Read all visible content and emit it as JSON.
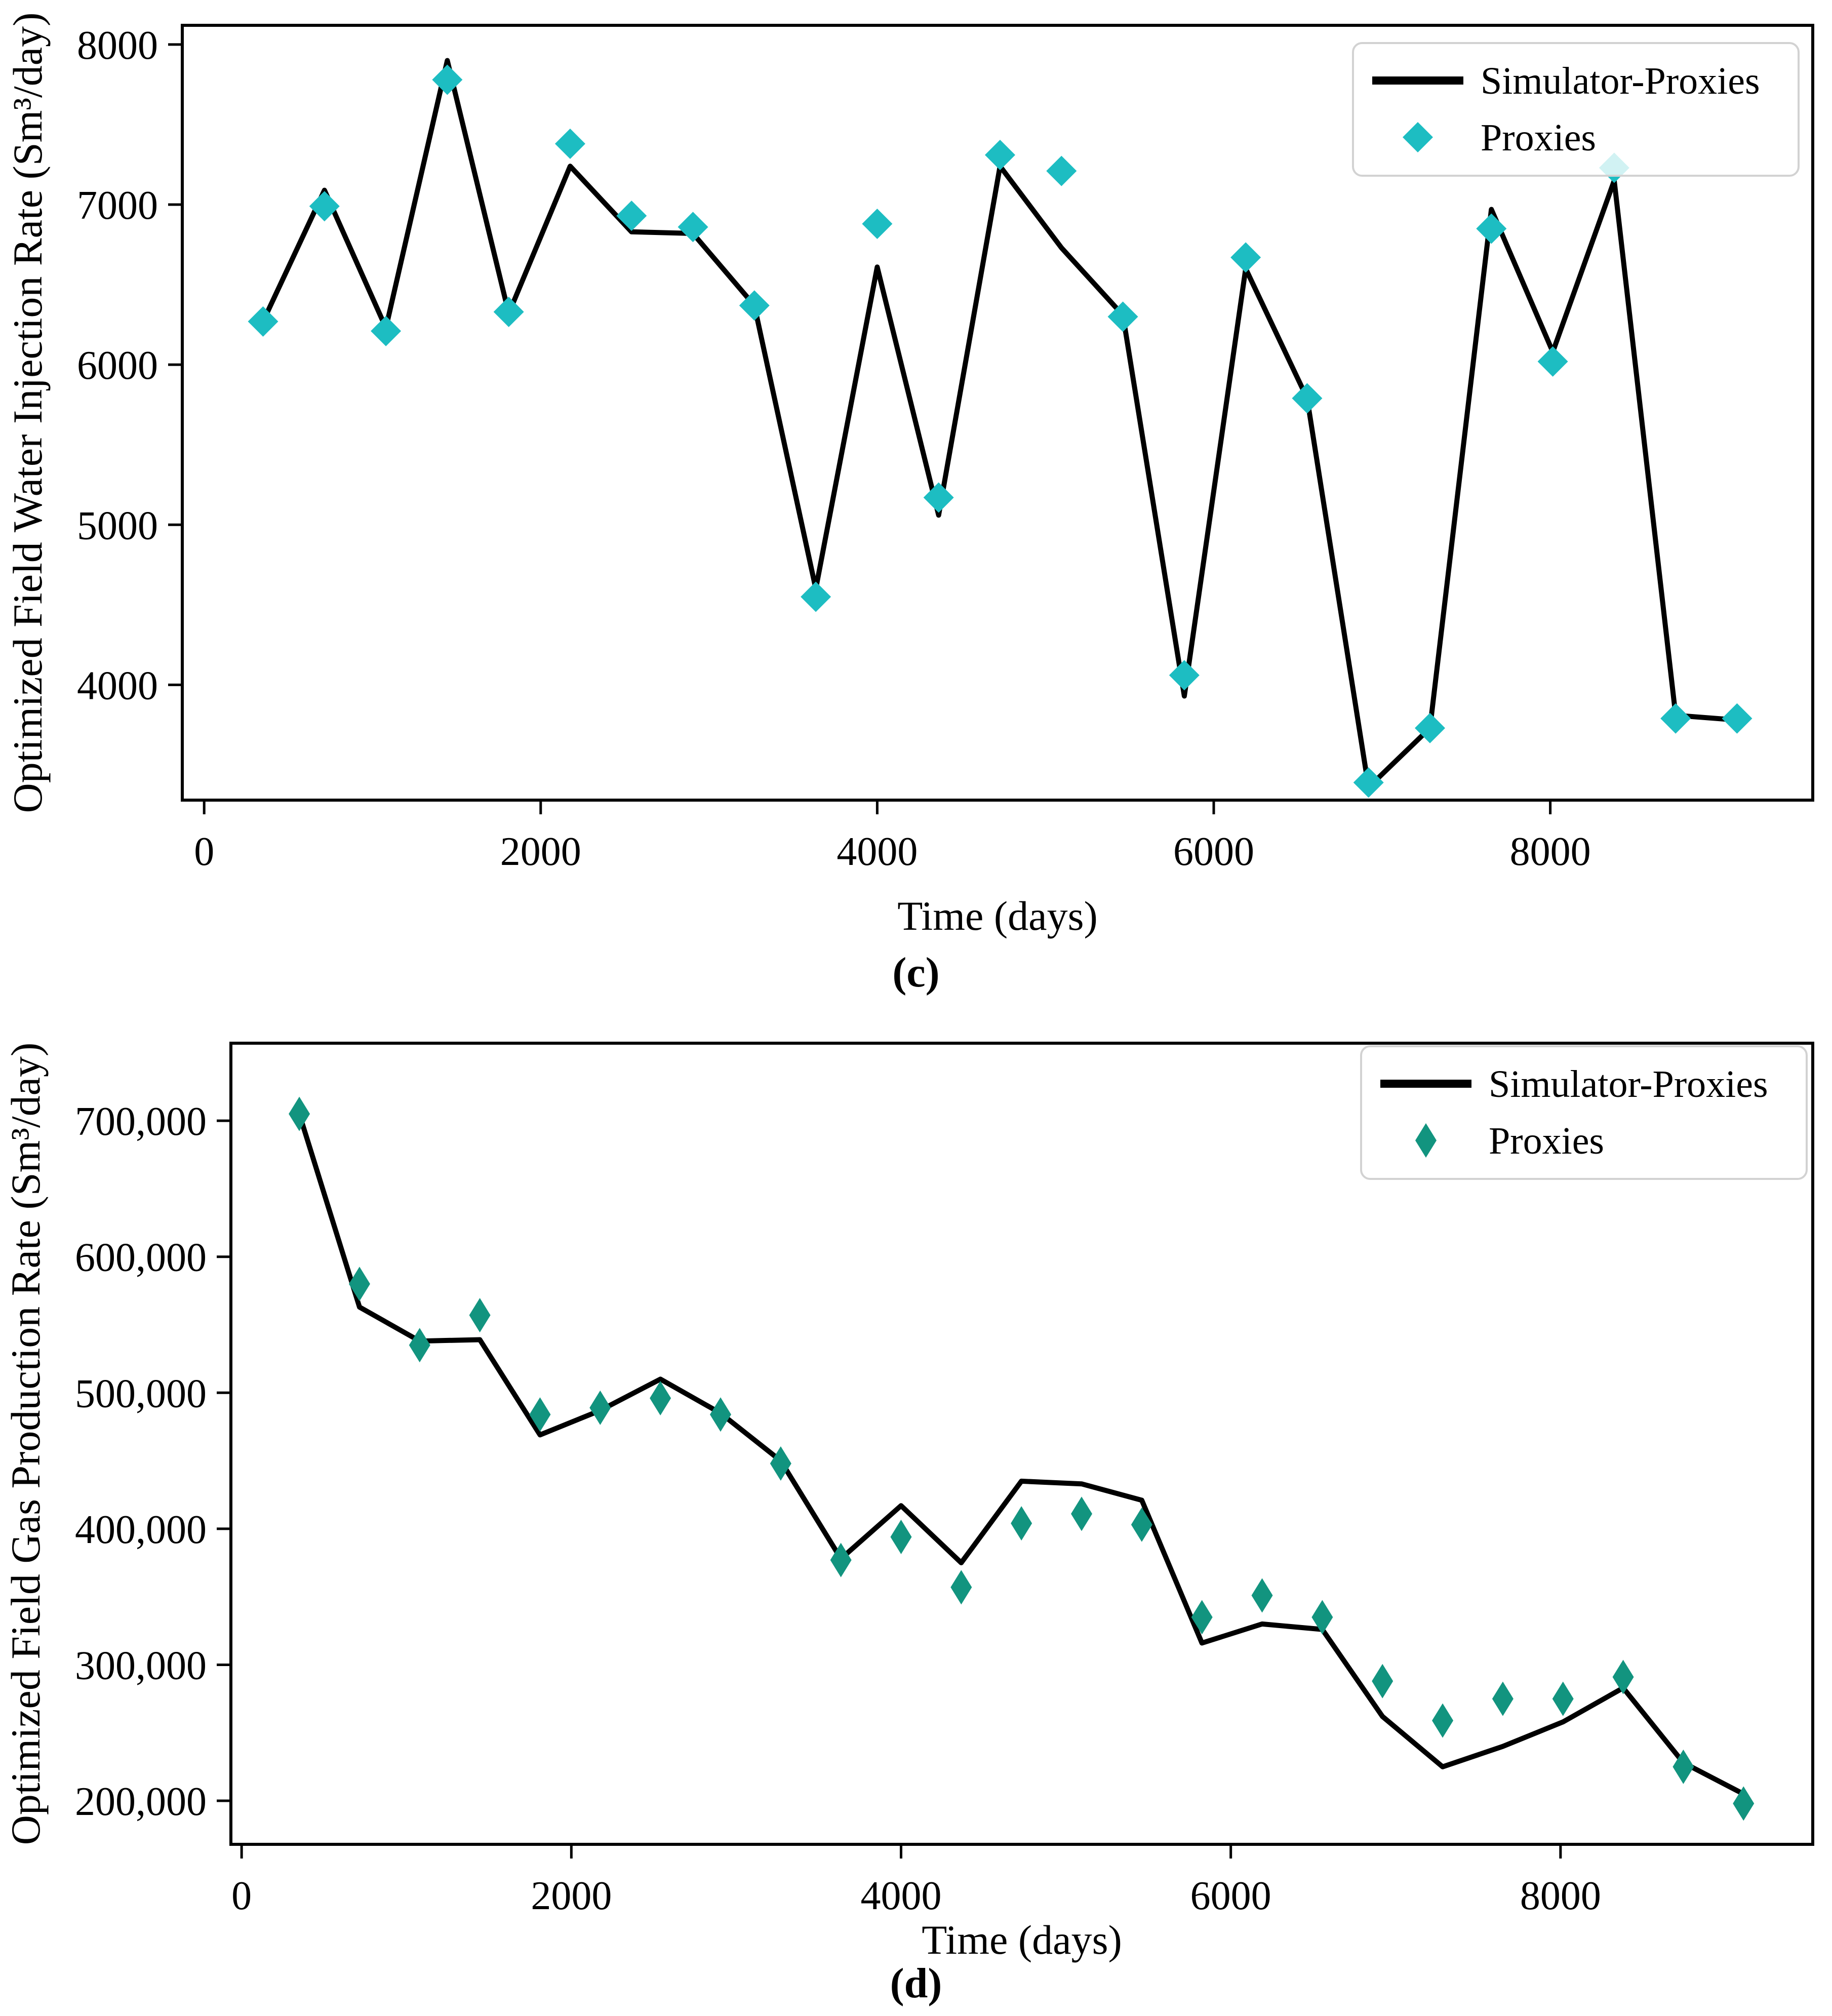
{
  "figure": {
    "background": "#ffffff",
    "captions": {
      "top": "(c)",
      "bottom": "(d)"
    }
  },
  "chart_data": [
    {
      "type": "line",
      "panel_caption": "(c)",
      "xlabel": "Time (days)",
      "ylabel": "Optimized Field Water Injection Rate (Sm³/day)",
      "legend": {
        "position": "upper right",
        "entries": [
          {
            "label": "Simulator-Proxies",
            "swatch": "line",
            "color": "#000000"
          },
          {
            "label": "Proxies",
            "swatch": "diamond",
            "color": "#1dbdc2"
          }
        ]
      },
      "colors": {
        "line": "#000000",
        "marker": "#1dbdc2",
        "legend_edge": "#d2d2d2"
      },
      "marker_shape": "diamond",
      "xlim": [
        -130,
        9560
      ],
      "ylim": [
        3280,
        8120
      ],
      "x_ticks": [
        0,
        2000,
        4000,
        6000,
        8000
      ],
      "x_tick_labels": [
        "0",
        "2000",
        "4000",
        "6000",
        "8000"
      ],
      "y_ticks": [
        4000,
        5000,
        6000,
        7000,
        8000
      ],
      "y_tick_labels": [
        "4000",
        "5000",
        "6000",
        "7000",
        "8000"
      ],
      "grid": false,
      "x": [
        350,
        715,
        1080,
        1445,
        1810,
        2175,
        2540,
        2905,
        3270,
        3635,
        4000,
        4365,
        4730,
        5095,
        5460,
        5825,
        6190,
        6555,
        6920,
        7285,
        7650,
        8015,
        8380,
        8745,
        9110
      ],
      "series": [
        {
          "name": "Simulator-Proxies",
          "style": "line",
          "values": [
            6270,
            7090,
            6230,
            7900,
            6320,
            7240,
            6830,
            6820,
            6370,
            4600,
            6610,
            5060,
            7240,
            6730,
            6310,
            3930,
            6600,
            5790,
            3360,
            3730,
            6970,
            6080,
            7150,
            3810,
            3780
          ]
        },
        {
          "name": "Proxies",
          "style": "scatter",
          "values": [
            6270,
            6990,
            6210,
            7780,
            6330,
            7380,
            6930,
            6860,
            6370,
            4550,
            6880,
            5170,
            7310,
            7210,
            6300,
            4060,
            6670,
            5790,
            3390,
            3730,
            6850,
            6020,
            7230,
            3790,
            3790
          ]
        }
      ],
      "marker_behind_legend_index": 22
    },
    {
      "type": "line",
      "panel_caption": "(d)",
      "xlabel": "Time (days)",
      "ylabel": "Optimized Field Gas Production Rate (Sm³/day)",
      "legend": {
        "position": "upper right",
        "entries": [
          {
            "label": "Simulator-Proxies",
            "swatch": "line",
            "color": "#000000"
          },
          {
            "label": "Proxies",
            "swatch": "diamond",
            "color": "#12947f"
          }
        ]
      },
      "colors": {
        "line": "#000000",
        "marker": "#12947f",
        "legend_edge": "#d2d2d2"
      },
      "marker_shape": "thin-diamond",
      "xlim": [
        -65,
        9530
      ],
      "ylim": [
        168000,
        757000
      ],
      "x_ticks": [
        0,
        2000,
        4000,
        6000,
        8000
      ],
      "x_tick_labels": [
        "0",
        "2000",
        "4000",
        "6000",
        "8000"
      ],
      "y_ticks": [
        200000,
        300000,
        400000,
        500000,
        600000,
        700000
      ],
      "y_tick_labels": [
        "200,000",
        "300,000",
        "400,000",
        "500,000",
        "600,000",
        "700,000"
      ],
      "grid": false,
      "x": [
        350,
        715,
        1080,
        1445,
        1810,
        2175,
        2540,
        2905,
        3270,
        3635,
        4000,
        4365,
        4730,
        5095,
        5460,
        5825,
        6190,
        6555,
        6920,
        7285,
        7650,
        8015,
        8380,
        8745,
        9110
      ],
      "series": [
        {
          "name": "Simulator-Proxies",
          "style": "line",
          "values": [
            705000,
            563000,
            538000,
            539000,
            469000,
            487000,
            510000,
            485000,
            450000,
            378000,
            417000,
            375000,
            435000,
            433000,
            421000,
            316000,
            330000,
            326000,
            262000,
            225000,
            240000,
            258000,
            283000,
            228000,
            205000
          ]
        },
        {
          "name": "Proxies",
          "style": "scatter",
          "values": [
            705000,
            580000,
            535000,
            557000,
            484000,
            489000,
            496000,
            484000,
            448000,
            377000,
            394000,
            357000,
            404000,
            411000,
            403000,
            335000,
            351000,
            335000,
            288000,
            259000,
            275000,
            275000,
            291000,
            225000,
            198000
          ]
        }
      ],
      "marker_behind_legend_index": -1
    }
  ]
}
